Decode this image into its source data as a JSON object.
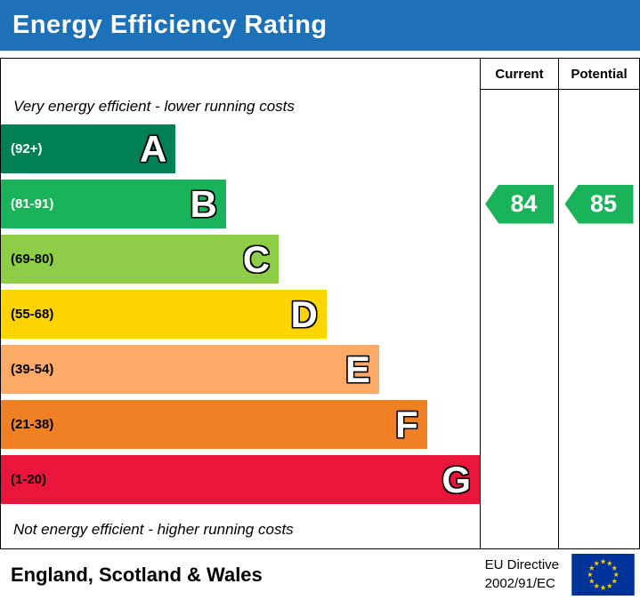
{
  "title": "Energy Efficiency Rating",
  "colors": {
    "header_bg": "#1d71b8",
    "header_text": "#ffffff"
  },
  "table": {
    "current_label": "Current",
    "potential_label": "Potential"
  },
  "notes": {
    "top": "Very energy efficient - lower running costs",
    "bottom": "Not energy efficient - higher running costs"
  },
  "bands": [
    {
      "letter": "A",
      "range": "(92+)",
      "color": "#008054",
      "text_color": "#ffffff",
      "width_pct": 36.5
    },
    {
      "letter": "B",
      "range": "(81-91)",
      "color": "#19b459",
      "text_color": "#ffffff",
      "width_pct": 47
    },
    {
      "letter": "C",
      "range": "(69-80)",
      "color": "#8dce46",
      "text_color": "#000000",
      "width_pct": 58
    },
    {
      "letter": "D",
      "range": "(55-68)",
      "color": "#ffd500",
      "text_color": "#000000",
      "width_pct": 68
    },
    {
      "letter": "E",
      "range": "(39-54)",
      "color": "#fcaa65",
      "text_color": "#000000",
      "width_pct": 79
    },
    {
      "letter": "F",
      "range": "(21-38)",
      "color": "#ef8023",
      "text_color": "#000000",
      "width_pct": 89
    },
    {
      "letter": "G",
      "range": "(1-20)",
      "color": "#e9153b",
      "text_color": "#000000",
      "width_pct": 100
    }
  ],
  "ratings": {
    "current": {
      "value": "84",
      "band": "B",
      "color": "#19b459"
    },
    "potential": {
      "value": "85",
      "band": "B",
      "color": "#19b459"
    }
  },
  "footer": {
    "region": "England, Scotland & Wales",
    "directive_line1": "EU Directive",
    "directive_line2": "2002/91/EC"
  },
  "chart_data": {
    "type": "bar",
    "title": "Energy Efficiency Rating",
    "categories": [
      "A",
      "B",
      "C",
      "D",
      "E",
      "F",
      "G"
    ],
    "band_ranges": [
      "92+",
      "81-91",
      "69-80",
      "55-68",
      "39-54",
      "21-38",
      "1-20"
    ],
    "band_colors": [
      "#008054",
      "#19b459",
      "#8dce46",
      "#ffd500",
      "#fcaa65",
      "#ef8023",
      "#e9153b"
    ],
    "scale": [
      1,
      100
    ],
    "current_rating": 84,
    "potential_rating": 85,
    "current_band": "B",
    "potential_band": "B",
    "annotations": [
      "Very energy efficient - lower running costs",
      "Not energy efficient - higher running costs"
    ],
    "region": "England, Scotland & Wales",
    "directive": "EU Directive 2002/91/EC"
  }
}
